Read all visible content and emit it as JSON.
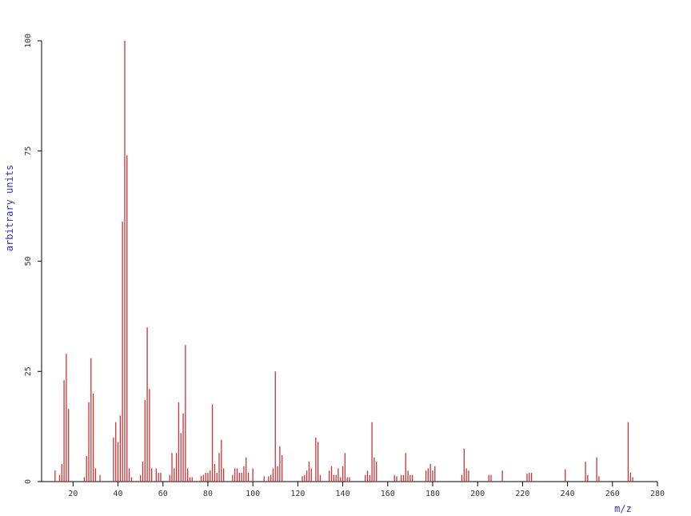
{
  "chart_data": {
    "type": "bar",
    "color": "#cc3333",
    "x_label": "m/z",
    "y_label": "arbitrary units",
    "x": [
      12,
      14,
      15,
      16,
      17,
      18,
      25,
      26,
      27,
      28,
      29,
      30,
      32,
      38,
      39,
      40,
      41,
      42,
      43,
      44,
      45,
      46,
      50,
      51,
      52,
      53,
      54,
      55,
      57,
      58,
      59,
      63,
      64,
      65,
      66,
      67,
      68,
      69,
      70,
      71,
      72,
      73,
      77,
      78,
      79,
      80,
      81,
      82,
      83,
      84,
      85,
      86,
      87,
      91,
      92,
      93,
      94,
      95,
      96,
      97,
      98,
      100,
      105,
      107,
      108,
      109,
      110,
      111,
      112,
      113,
      122,
      123,
      124,
      125,
      126,
      128,
      129,
      130,
      134,
      135,
      136,
      137,
      138,
      139,
      140,
      141,
      142,
      143,
      150,
      151,
      152,
      153,
      154,
      155,
      163,
      164,
      166,
      167,
      168,
      169,
      170,
      171,
      177,
      178,
      179,
      180,
      181,
      193,
      194,
      195,
      196,
      205,
      206,
      211,
      222,
      223,
      224,
      239,
      248,
      249,
      253,
      254,
      267,
      268,
      269
    ],
    "values": [
      2.5,
      1.5,
      4,
      23,
      29,
      16.5,
      1,
      5.8,
      18,
      28,
      20,
      3,
      1.5,
      10,
      13.5,
      9,
      15,
      59,
      100,
      74,
      3,
      1,
      1.5,
      4.5,
      18.5,
      35,
      21,
      3,
      3,
      2,
      2,
      1.5,
      6.5,
      3,
      6.5,
      18,
      11,
      15.5,
      31,
      3,
      1,
      1,
      1.3,
      1.5,
      2,
      2,
      2.5,
      17.5,
      4,
      2,
      6.5,
      9.5,
      3,
      1.5,
      3,
      3,
      2,
      2,
      3.5,
      5.5,
      2,
      3,
      1.2,
      1.2,
      1.5,
      3,
      25,
      3.5,
      8,
      6,
      1.2,
      1.5,
      2.5,
      4.5,
      3,
      10,
      9,
      1.5,
      2.5,
      3.5,
      1.5,
      1.5,
      3,
      1,
      3.5,
      6.5,
      1,
      1,
      1.5,
      2.5,
      1.5,
      13.5,
      5.5,
      4.5,
      1.5,
      1.2,
      1.5,
      1.5,
      6.5,
      2.5,
      1.5,
      1.5,
      2.5,
      3,
      4,
      2.5,
      3.5,
      1.5,
      7.5,
      3,
      2.5,
      1.5,
      1.5,
      2.5,
      1.8,
      2,
      2,
      2.8,
      4.5,
      1.5,
      5.5,
      1.2,
      13.5,
      2,
      1
    ],
    "xlim": [
      6,
      280
    ],
    "ylim": [
      0,
      100
    ],
    "xticks": [
      20,
      40,
      60,
      80,
      100,
      120,
      140,
      160,
      180,
      200,
      220,
      240,
      260,
      280
    ],
    "yticks": [
      0,
      25,
      50,
      75,
      100
    ]
  }
}
